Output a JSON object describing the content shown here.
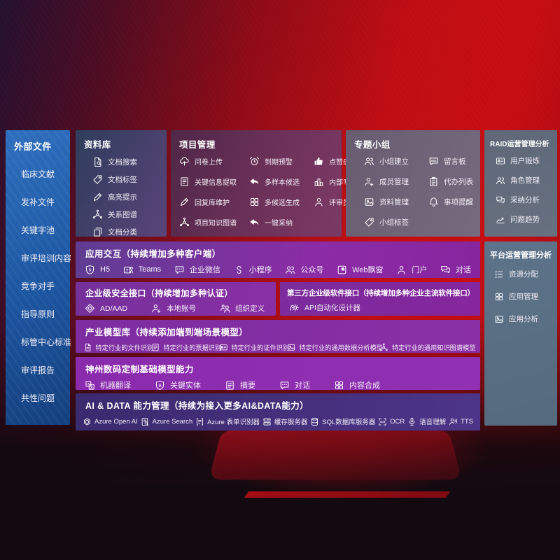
{
  "colors": {
    "background_red": "#c00d13",
    "background_dark": "#241030",
    "sidebar_blue": "#1e5fae",
    "purple_accent": "#8a2fa6",
    "indigo_panel": "#43307e",
    "slate_panel": "#5d7389",
    "maroon_panel": "#6d3159",
    "text": "#ffffff"
  },
  "sidebar": {
    "title": "外部文件",
    "items": [
      {
        "label": "临床文献"
      },
      {
        "label": "发补文件"
      },
      {
        "label": "关键字池"
      },
      {
        "label": "审评培训内容"
      },
      {
        "label": "竞争对手"
      },
      {
        "label": "指导原则"
      },
      {
        "label": "标管中心标准"
      },
      {
        "label": "审评报告"
      },
      {
        "label": "共性问题"
      }
    ]
  },
  "panels": {
    "repository": {
      "title": "资料库",
      "items": [
        {
          "icon": "doc-search",
          "label": "文档搜索"
        },
        {
          "icon": "tag",
          "label": "文档标签"
        },
        {
          "icon": "pen",
          "label": "高亮提示"
        },
        {
          "icon": "network",
          "label": "关系图谱"
        },
        {
          "icon": "copy",
          "label": "文档分类"
        }
      ]
    },
    "project": {
      "title": "项目管理",
      "items": [
        {
          "icon": "cloud-upload",
          "label": "问卷上传"
        },
        {
          "icon": "alarm",
          "label": "到期预警"
        },
        {
          "icon": "thumbs-up",
          "label": "点赞感谢"
        },
        {
          "icon": "doc-lines",
          "label": "关键信息提取"
        },
        {
          "icon": "reply-arrow",
          "label": "多样本候选"
        },
        {
          "icon": "podium",
          "label": "内部专家排名"
        },
        {
          "icon": "pen",
          "label": "回复库维护"
        },
        {
          "icon": "grid",
          "label": "多候选生成"
        },
        {
          "icon": "person",
          "label": "评审员画像"
        },
        {
          "icon": "network",
          "label": "项目知识图谱"
        },
        {
          "icon": "reply-arrow",
          "label": "一键采纳"
        }
      ]
    },
    "groups": {
      "title": "专题小组",
      "items": [
        {
          "icon": "people",
          "label": "小组建立"
        },
        {
          "icon": "bbs",
          "label": "留言板"
        },
        {
          "icon": "person-plus",
          "label": "成员管理"
        },
        {
          "icon": "clipboard",
          "label": "代办列表"
        },
        {
          "icon": "image",
          "label": "资料管理"
        },
        {
          "icon": "bell",
          "label": "事项提醒"
        },
        {
          "icon": "tag",
          "label": "小组标签"
        }
      ]
    },
    "raid": {
      "title": "RAID运营管理分析",
      "items": [
        {
          "icon": "id-card",
          "label": "用户锻炼"
        },
        {
          "icon": "people",
          "label": "角色管理"
        },
        {
          "icon": "chat-double",
          "label": "采纳分析"
        },
        {
          "icon": "trend-chart",
          "label": "问题趋势"
        }
      ]
    },
    "platform": {
      "title": "平台运营管理分析",
      "items": [
        {
          "icon": "list",
          "label": "资源分配"
        },
        {
          "icon": "grid",
          "label": "应用管理"
        },
        {
          "icon": "image",
          "label": "应用分析"
        }
      ]
    },
    "interaction": {
      "title": "应用交互（持续增加多种客户端）",
      "items": [
        {
          "icon": "shield-5",
          "label": "H5"
        },
        {
          "icon": "teams",
          "label": "Teams"
        },
        {
          "icon": "chat",
          "label": "企业微信"
        },
        {
          "icon": "mini-program",
          "label": "小程序"
        },
        {
          "icon": "people",
          "label": "公众号"
        },
        {
          "icon": "window",
          "label": "Web飘窗"
        },
        {
          "icon": "person",
          "label": "门户"
        },
        {
          "icon": "chat-double",
          "label": "对话"
        }
      ]
    },
    "security": {
      "title": "企业级安全接口（持续增加多种认证）",
      "items": [
        {
          "icon": "diamond",
          "label": "AD/AAD"
        },
        {
          "icon": "person-plus",
          "label": "本地账号"
        },
        {
          "icon": "org",
          "label": "组织定义"
        }
      ]
    },
    "thirdparty": {
      "title": "第三方企业级软件接口（持续增加多种企业主流软件接口）",
      "items": [
        {
          "icon": "api-gear",
          "label": "API自动化设计器"
        }
      ]
    },
    "industry_models": {
      "title": "产业模型库（持续添加端到端场景模型）",
      "items": [
        {
          "icon": "doc",
          "label": "特定行业的文件识别"
        },
        {
          "icon": "doc-lines",
          "label": "特定行业的票据识别"
        },
        {
          "icon": "id-card",
          "label": "特定行业的证件识别"
        },
        {
          "icon": "image",
          "label": "特定行业的通用数据分析模型"
        },
        {
          "icon": "network",
          "label": "特定行业的通用知识图谱模型"
        }
      ]
    },
    "base_models": {
      "title": "神州数码定制基础模型能力",
      "items": [
        {
          "icon": "translate",
          "label": "机器翻译"
        },
        {
          "icon": "shield-a",
          "label": "关键实体"
        },
        {
          "icon": "doc-lines",
          "label": "摘要"
        },
        {
          "icon": "chat",
          "label": "对话"
        },
        {
          "icon": "grid",
          "label": "内容合成"
        }
      ]
    },
    "ai_data": {
      "title": "AI & DATA 能力管理（持续为接入更多AI&DATA能力）",
      "items": [
        {
          "icon": "openai",
          "label": "Azure Open AI"
        },
        {
          "icon": "search-doc",
          "label": "Azure Search"
        },
        {
          "icon": "doc-form",
          "label": "Azure 表单识别器"
        },
        {
          "icon": "server",
          "label": "缓存服务器"
        },
        {
          "icon": "database",
          "label": "SQL数据库服务器"
        },
        {
          "icon": "ocr-frame",
          "label": "OCR"
        },
        {
          "icon": "mic",
          "label": "语音理解"
        },
        {
          "icon": "tts",
          "label": "TTS"
        }
      ]
    }
  }
}
